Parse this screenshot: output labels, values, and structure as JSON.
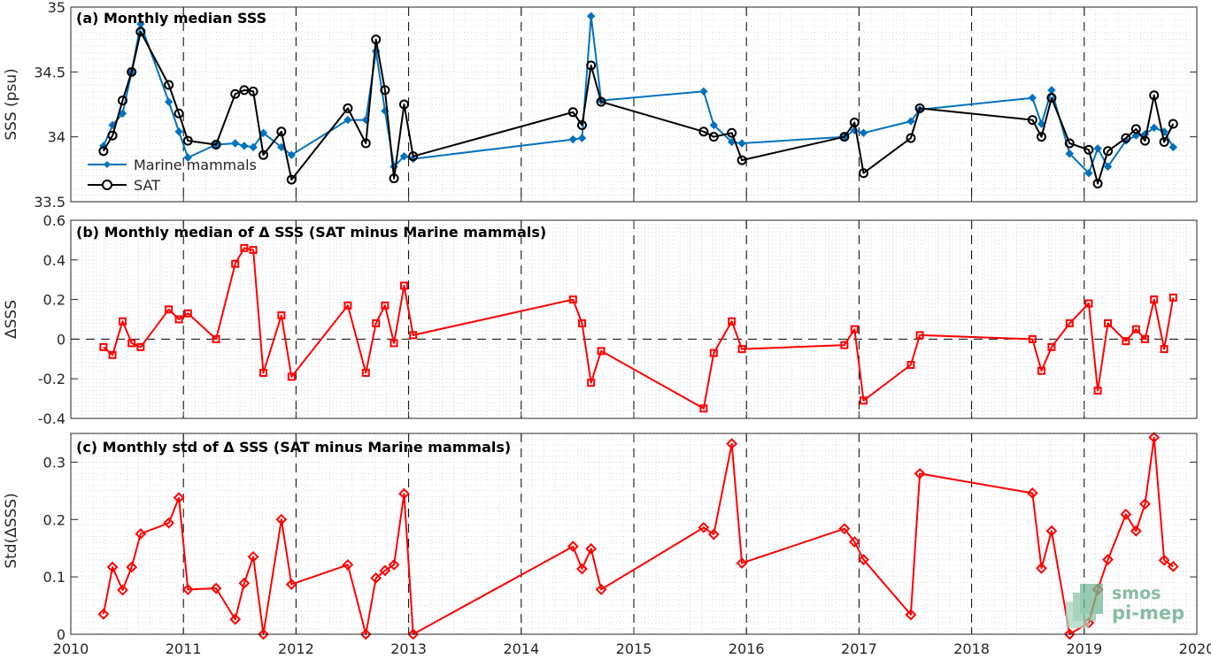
{
  "chart_data": [
    {
      "type": "line",
      "title": "(a) Monthly median SSS",
      "ylabel": "SSS (psu)",
      "xlim": [
        2010,
        2020
      ],
      "ylim": [
        33.5,
        35
      ],
      "yticks": [
        33.5,
        34,
        34.5,
        35
      ],
      "ytick_labels": [
        "33.5",
        "34",
        "34.5",
        "35"
      ],
      "grid": true,
      "legend": "left",
      "series": [
        {
          "name": "Marine mammals",
          "color": "#0072bd",
          "marker": "diamond",
          "x": [
            2010.29,
            2010.37,
            2010.46,
            2010.54,
            2010.62,
            2010.87,
            2010.96,
            2011.04,
            2011.29,
            2011.46,
            2011.54,
            2011.62,
            2011.71,
            2011.87,
            2011.96,
            2012.46,
            2012.62,
            2012.71,
            2012.79,
            2012.87,
            2012.96,
            2013.04,
            2014.46,
            2014.54,
            2014.62,
            2014.71,
            2015.62,
            2015.71,
            2015.87,
            2015.96,
            2016.87,
            2016.96,
            2017.04,
            2017.46,
            2017.54,
            2018.54,
            2018.62,
            2018.71,
            2018.87,
            2019.04,
            2019.12,
            2019.21,
            2019.37,
            2019.46,
            2019.54,
            2019.62,
            2019.71,
            2019.79
          ],
          "values": [
            33.93,
            34.09,
            34.18,
            34.5,
            34.87,
            34.27,
            34.04,
            33.84,
            33.94,
            33.95,
            33.93,
            33.92,
            34.03,
            33.92,
            33.86,
            34.13,
            34.13,
            34.66,
            34.2,
            33.77,
            33.85,
            33.83,
            33.98,
            33.99,
            34.93,
            34.28,
            34.35,
            34.09,
            33.96,
            33.95,
            34.0,
            34.05,
            34.03,
            34.12,
            34.21,
            34.3,
            34.1,
            34.36,
            33.87,
            33.72,
            33.91,
            33.77,
            33.97,
            34.01,
            34.02,
            34.07,
            34.04,
            33.92
          ]
        },
        {
          "name": "SAT",
          "color": "#000000",
          "marker": "circle",
          "x": [
            2010.29,
            2010.37,
            2010.46,
            2010.54,
            2010.62,
            2010.87,
            2010.96,
            2011.04,
            2011.29,
            2011.46,
            2011.54,
            2011.62,
            2011.71,
            2011.87,
            2011.96,
            2012.46,
            2012.62,
            2012.71,
            2012.79,
            2012.87,
            2012.96,
            2013.04,
            2014.46,
            2014.54,
            2014.62,
            2014.71,
            2015.62,
            2015.71,
            2015.87,
            2015.96,
            2016.87,
            2016.96,
            2017.04,
            2017.46,
            2017.54,
            2018.54,
            2018.62,
            2018.71,
            2018.87,
            2019.04,
            2019.12,
            2019.21,
            2019.37,
            2019.46,
            2019.54,
            2019.62,
            2019.71,
            2019.79
          ],
          "values": [
            33.89,
            34.01,
            34.28,
            34.5,
            34.81,
            34.4,
            34.18,
            33.97,
            33.94,
            34.33,
            34.36,
            34.35,
            33.86,
            34.04,
            33.67,
            34.22,
            33.95,
            34.75,
            34.36,
            33.68,
            34.25,
            33.85,
            34.19,
            34.09,
            34.55,
            34.27,
            34.04,
            34.0,
            34.03,
            33.82,
            34.0,
            34.11,
            33.72,
            33.99,
            34.22,
            34.13,
            34.0,
            34.3,
            33.95,
            33.9,
            33.64,
            33.89,
            33.99,
            34.06,
            33.97,
            34.32,
            33.96,
            34.1
          ]
        }
      ]
    },
    {
      "type": "line",
      "title": "(b) Monthly median of Δ SSS (SAT minus Marine mammals)",
      "ylabel": "ΔSSS",
      "xlim": [
        2010,
        2020
      ],
      "ylim": [
        -0.4,
        0.6
      ],
      "yticks": [
        -0.4,
        -0.2,
        0,
        0.2,
        0.4,
        0.6
      ],
      "ytick_labels": [
        "-0.4",
        "-0.2",
        "0",
        "0.2",
        "0.4",
        "0.6"
      ],
      "zero_line": true,
      "grid": true,
      "series": [
        {
          "color": "#ff0000",
          "marker": "square",
          "x": [
            2010.29,
            2010.37,
            2010.46,
            2010.54,
            2010.62,
            2010.87,
            2010.96,
            2011.04,
            2011.29,
            2011.46,
            2011.54,
            2011.62,
            2011.71,
            2011.87,
            2011.96,
            2012.46,
            2012.62,
            2012.71,
            2012.79,
            2012.87,
            2012.96,
            2013.04,
            2014.46,
            2014.54,
            2014.62,
            2014.71,
            2015.62,
            2015.71,
            2015.87,
            2015.96,
            2016.87,
            2016.96,
            2017.04,
            2017.46,
            2017.54,
            2018.54,
            2018.62,
            2018.71,
            2018.87,
            2019.04,
            2019.12,
            2019.21,
            2019.37,
            2019.46,
            2019.54,
            2019.62,
            2019.71,
            2019.79
          ],
          "values": [
            -0.04,
            -0.08,
            0.09,
            -0.02,
            -0.04,
            0.15,
            0.1,
            0.13,
            0.0,
            0.38,
            0.46,
            0.45,
            -0.17,
            0.12,
            -0.19,
            0.17,
            -0.17,
            0.08,
            0.17,
            -0.02,
            0.27,
            0.02,
            0.2,
            0.08,
            -0.22,
            -0.06,
            -0.35,
            -0.07,
            0.09,
            -0.05,
            -0.03,
            0.05,
            -0.31,
            -0.13,
            0.02,
            0.0,
            -0.16,
            -0.04,
            0.08,
            0.18,
            -0.26,
            0.08,
            -0.01,
            0.05,
            0.0,
            0.2,
            -0.05,
            0.21
          ]
        }
      ]
    },
    {
      "type": "line",
      "title": "(c) Monthly std of Δ SSS (SAT minus Marine mammals)",
      "ylabel": "Std(ΔSSS)",
      "xlim": [
        2010,
        2020
      ],
      "ylim": [
        0,
        0.35
      ],
      "yticks": [
        0,
        0.1,
        0.2,
        0.3
      ],
      "ytick_labels": [
        "0",
        "0.1",
        "0.2",
        "0.3"
      ],
      "xticks": [
        2010,
        2011,
        2012,
        2013,
        2014,
        2015,
        2016,
        2017,
        2018,
        2019,
        2020
      ],
      "xtick_labels": [
        "2010",
        "2011",
        "2012",
        "2013",
        "2014",
        "2015",
        "2016",
        "2017",
        "2018",
        "2019",
        "2020"
      ],
      "grid": true,
      "series": [
        {
          "color": "#ff0000",
          "marker": "diamond",
          "x": [
            2010.29,
            2010.37,
            2010.46,
            2010.54,
            2010.62,
            2010.87,
            2010.96,
            2011.04,
            2011.29,
            2011.46,
            2011.54,
            2011.62,
            2011.71,
            2011.87,
            2011.96,
            2012.46,
            2012.62,
            2012.71,
            2012.79,
            2012.87,
            2012.96,
            2013.04,
            2014.46,
            2014.54,
            2014.62,
            2014.71,
            2015.62,
            2015.71,
            2015.87,
            2015.96,
            2016.87,
            2016.96,
            2017.04,
            2017.46,
            2017.54,
            2018.54,
            2018.62,
            2018.71,
            2018.87,
            2019.04,
            2019.12,
            2019.21,
            2019.37,
            2019.46,
            2019.54,
            2019.62,
            2019.71,
            2019.79
          ],
          "values": [
            0.035,
            0.117,
            0.077,
            0.117,
            0.175,
            0.194,
            0.238,
            0.078,
            0.08,
            0.026,
            0.089,
            0.135,
            0.0,
            0.2,
            0.087,
            0.121,
            0.0,
            0.098,
            0.111,
            0.121,
            0.245,
            0.0,
            0.153,
            0.114,
            0.149,
            0.078,
            0.186,
            0.174,
            0.332,
            0.124,
            0.184,
            0.161,
            0.13,
            0.034,
            0.28,
            0.246,
            0.115,
            0.18,
            0.0,
            0.02,
            0.078,
            0.13,
            0.209,
            0.18,
            0.227,
            0.343,
            0.129,
            0.118
          ]
        }
      ]
    }
  ],
  "watermark": {
    "line1": "smos",
    "line2": "pi-mep"
  }
}
